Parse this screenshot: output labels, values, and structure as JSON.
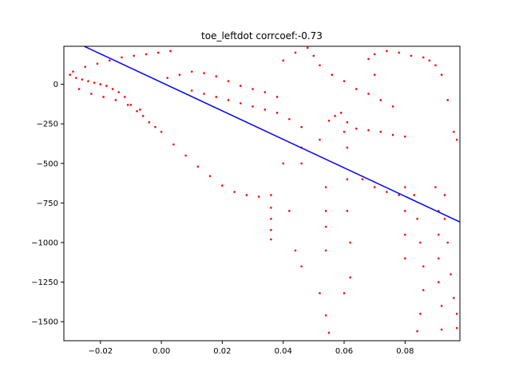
{
  "chart_data": {
    "type": "scatter",
    "title": "toe_leftdot corrcoef:-0.73",
    "xlabel": "",
    "ylabel": "",
    "xlim": [
      -0.032,
      0.098
    ],
    "ylim": [
      -1620,
      240
    ],
    "x_ticks": [
      -0.02,
      0.0,
      0.02,
      0.04,
      0.06,
      0.08
    ],
    "x_tick_labels": [
      "−0.02",
      "0.00",
      "0.02",
      "0.04",
      "0.06",
      "0.08"
    ],
    "y_ticks": [
      0,
      -250,
      -500,
      -750,
      -1000,
      -1250,
      -1500
    ],
    "y_tick_labels": [
      "0",
      "−250",
      "−500",
      "−750",
      "−1000",
      "−1250",
      "−1500"
    ],
    "grid": false,
    "colors": {
      "points": "#ff0000",
      "fit_line": "#0000ff"
    },
    "fit_line": {
      "x": [
        -0.032,
        0.098
      ],
      "y": [
        300,
        -870
      ]
    },
    "series": [
      {
        "marker": "dot",
        "points": [
          [
            -0.03,
            60
          ],
          [
            -0.028,
            40
          ],
          [
            -0.026,
            30
          ],
          [
            -0.024,
            20
          ],
          [
            -0.022,
            10
          ],
          [
            -0.02,
            0
          ],
          [
            -0.018,
            -10
          ],
          [
            -0.016,
            -30
          ],
          [
            -0.014,
            -50
          ],
          [
            -0.012,
            -80
          ],
          [
            -0.01,
            -130
          ],
          [
            -0.008,
            -170
          ],
          [
            -0.006,
            -200
          ],
          [
            -0.004,
            -240
          ],
          [
            -0.002,
            -270
          ],
          [
            0.0,
            -300
          ],
          [
            -0.029,
            80
          ],
          [
            -0.025,
            110
          ],
          [
            -0.021,
            130
          ],
          [
            -0.017,
            150
          ],
          [
            -0.013,
            170
          ],
          [
            -0.009,
            180
          ],
          [
            -0.005,
            190
          ],
          [
            -0.001,
            200
          ],
          [
            0.003,
            210
          ],
          [
            -0.027,
            -30
          ],
          [
            -0.023,
            -60
          ],
          [
            -0.019,
            -80
          ],
          [
            -0.015,
            -100
          ],
          [
            -0.011,
            -130
          ],
          [
            -0.007,
            -160
          ],
          [
            0.004,
            -380
          ],
          [
            0.008,
            -450
          ],
          [
            0.012,
            -520
          ],
          [
            0.016,
            -580
          ],
          [
            0.02,
            -640
          ],
          [
            0.024,
            -680
          ],
          [
            0.028,
            -700
          ],
          [
            0.032,
            -710
          ],
          [
            0.036,
            -700
          ],
          [
            0.002,
            40
          ],
          [
            0.006,
            60
          ],
          [
            0.01,
            80
          ],
          [
            0.014,
            70
          ],
          [
            0.018,
            50
          ],
          [
            0.022,
            20
          ],
          [
            0.026,
            -10
          ],
          [
            0.03,
            -30
          ],
          [
            0.034,
            -50
          ],
          [
            0.038,
            -80
          ],
          [
            0.01,
            -40
          ],
          [
            0.014,
            -60
          ],
          [
            0.018,
            -80
          ],
          [
            0.022,
            -100
          ],
          [
            0.026,
            -120
          ],
          [
            0.03,
            -140
          ],
          [
            0.034,
            -160
          ],
          [
            0.038,
            -180
          ],
          [
            0.042,
            -220
          ],
          [
            0.036,
            -780
          ],
          [
            0.036,
            -850
          ],
          [
            0.036,
            -920
          ],
          [
            0.036,
            -980
          ],
          [
            0.04,
            -500
          ],
          [
            0.042,
            -800
          ],
          [
            0.044,
            -1050
          ],
          [
            0.046,
            -1150
          ],
          [
            0.046,
            -270
          ],
          [
            0.046,
            -400
          ],
          [
            0.046,
            -500
          ],
          [
            0.052,
            -350
          ],
          [
            0.054,
            -650
          ],
          [
            0.054,
            -800
          ],
          [
            0.054,
            -900
          ],
          [
            0.054,
            -1050
          ],
          [
            0.052,
            -1320
          ],
          [
            0.054,
            -1460
          ],
          [
            0.055,
            -1570
          ],
          [
            0.055,
            -230
          ],
          [
            0.057,
            -200
          ],
          [
            0.059,
            -180
          ],
          [
            0.061,
            -240
          ],
          [
            0.061,
            -400
          ],
          [
            0.061,
            -600
          ],
          [
            0.061,
            -800
          ],
          [
            0.062,
            -1000
          ],
          [
            0.062,
            -1220
          ],
          [
            0.06,
            -1320
          ],
          [
            0.06,
            -300
          ],
          [
            0.064,
            -280
          ],
          [
            0.068,
            -290
          ],
          [
            0.072,
            -300
          ],
          [
            0.076,
            -320
          ],
          [
            0.08,
            -330
          ],
          [
            0.066,
            -600
          ],
          [
            0.07,
            -650
          ],
          [
            0.074,
            -680
          ],
          [
            0.078,
            -700
          ],
          [
            0.07,
            60
          ],
          [
            0.068,
            160
          ],
          [
            0.07,
            190
          ],
          [
            0.074,
            210
          ],
          [
            0.078,
            200
          ],
          [
            0.082,
            180
          ],
          [
            0.086,
            170
          ],
          [
            0.088,
            150
          ],
          [
            0.09,
            120
          ],
          [
            0.092,
            60
          ],
          [
            0.094,
            -100
          ],
          [
            0.096,
            -300
          ],
          [
            0.097,
            -350
          ],
          [
            0.08,
            -650
          ],
          [
            0.08,
            -800
          ],
          [
            0.08,
            -950
          ],
          [
            0.08,
            -1100
          ],
          [
            0.083,
            -700
          ],
          [
            0.084,
            -850
          ],
          [
            0.085,
            -1000
          ],
          [
            0.086,
            -1150
          ],
          [
            0.086,
            -1300
          ],
          [
            0.085,
            -1450
          ],
          [
            0.084,
            -1560
          ],
          [
            0.09,
            -650
          ],
          [
            0.091,
            -800
          ],
          [
            0.091,
            -950
          ],
          [
            0.091,
            -1100
          ],
          [
            0.091,
            -1250
          ],
          [
            0.092,
            -1400
          ],
          [
            0.092,
            -1550
          ],
          [
            0.093,
            -700
          ],
          [
            0.093,
            -850
          ],
          [
            0.094,
            -1000
          ],
          [
            0.095,
            -1200
          ],
          [
            0.096,
            -1350
          ],
          [
            0.097,
            -1450
          ],
          [
            0.097,
            -1540
          ],
          [
            0.04,
            150
          ],
          [
            0.044,
            200
          ],
          [
            0.048,
            230
          ],
          [
            0.05,
            180
          ],
          [
            0.052,
            120
          ],
          [
            0.056,
            60
          ],
          [
            0.06,
            20
          ],
          [
            0.064,
            -30
          ],
          [
            0.068,
            -60
          ],
          [
            0.072,
            -100
          ],
          [
            0.076,
            -140
          ]
        ]
      }
    ]
  }
}
